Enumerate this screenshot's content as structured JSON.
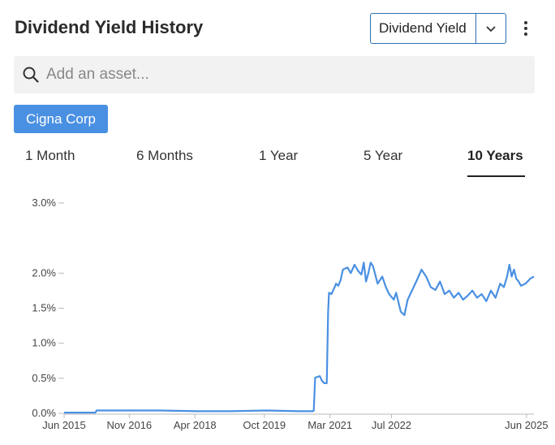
{
  "header": {
    "title": "Dividend Yield History",
    "metric_value": "Dividend Yield"
  },
  "search": {
    "placeholder": "Add an asset..."
  },
  "asset_chip": {
    "label": "Cigna Corp"
  },
  "tabs": [
    {
      "label": "1 Month",
      "active": false
    },
    {
      "label": "6 Months",
      "active": false
    },
    {
      "label": "1 Year",
      "active": false
    },
    {
      "label": "5 Year",
      "active": false
    },
    {
      "label": "10 Years",
      "active": true
    }
  ],
  "colors": {
    "line": "#4a90e2",
    "chip": "#4a90e2",
    "select_border": "#2f6fb6"
  },
  "chart_data": {
    "type": "line",
    "title": "",
    "xlabel": "",
    "ylabel": "",
    "x_range": [
      2015.42,
      2025.58
    ],
    "ylim": [
      0,
      3.0
    ],
    "y_ticks": [
      {
        "value": 0,
        "label": "0.0%"
      },
      {
        "value": 0.5,
        "label": "0.5%"
      },
      {
        "value": 1.0,
        "label": "1.0%"
      },
      {
        "value": 1.5,
        "label": "1.5%"
      },
      {
        "value": 2.0,
        "label": "2.0%"
      },
      {
        "value": 3.0,
        "label": "3.0%"
      }
    ],
    "x_ticks": [
      {
        "value": 2015.42,
        "label": "Jun 2015"
      },
      {
        "value": 2016.83,
        "label": "Nov 2016"
      },
      {
        "value": 2018.25,
        "label": "Apr 2018"
      },
      {
        "value": 2019.75,
        "label": "Oct 2019"
      },
      {
        "value": 2021.17,
        "label": "Mar 2021"
      },
      {
        "value": 2022.5,
        "label": "Jul 2022"
      },
      {
        "value": 2025.42,
        "label": "Jun 2025"
      }
    ],
    "grid": false,
    "series": [
      {
        "x": [
          2015.42,
          2016.1,
          2016.12,
          2016.8,
          2017.5,
          2018.3,
          2019.0,
          2019.8,
          2020.5,
          2020.8,
          2020.82,
          2020.85,
          2020.95,
          2021.0,
          2021.05,
          2021.1,
          2021.13,
          2021.15,
          2021.2,
          2021.27,
          2021.3,
          2021.35,
          2021.4,
          2021.45,
          2021.55,
          2021.62,
          2021.7,
          2021.78,
          2021.85,
          2021.9,
          2021.95,
          2022.0,
          2022.05,
          2022.1,
          2022.2,
          2022.3,
          2022.38,
          2022.45,
          2022.55,
          2022.6,
          2022.7,
          2022.78,
          2022.85,
          2022.95,
          2023.05,
          2023.15,
          2023.25,
          2023.35,
          2023.45,
          2023.55,
          2023.65,
          2023.75,
          2023.85,
          2023.95,
          2024.05,
          2024.15,
          2024.25,
          2024.35,
          2024.45,
          2024.55,
          2024.65,
          2024.75,
          2024.85,
          2024.93,
          2025.0,
          2025.05,
          2025.1,
          2025.15,
          2025.2,
          2025.25,
          2025.3,
          2025.4,
          2025.5,
          2025.58
        ],
        "values": [
          0.01,
          0.01,
          0.04,
          0.04,
          0.04,
          0.03,
          0.03,
          0.04,
          0.03,
          0.03,
          0.04,
          0.51,
          0.53,
          0.46,
          0.43,
          0.43,
          1.45,
          1.72,
          1.7,
          1.8,
          1.85,
          1.82,
          1.9,
          2.05,
          2.08,
          2.0,
          2.12,
          2.03,
          1.98,
          2.15,
          1.88,
          2.0,
          2.15,
          2.1,
          1.85,
          1.95,
          1.8,
          1.7,
          1.62,
          1.72,
          1.45,
          1.4,
          1.62,
          1.76,
          1.9,
          2.05,
          1.95,
          1.8,
          1.76,
          1.88,
          1.7,
          1.75,
          1.65,
          1.72,
          1.62,
          1.68,
          1.75,
          1.65,
          1.7,
          1.6,
          1.75,
          1.65,
          1.85,
          1.8,
          1.95,
          2.12,
          1.95,
          2.05,
          1.92,
          1.88,
          1.82,
          1.85,
          1.92,
          1.95
        ]
      }
    ]
  }
}
